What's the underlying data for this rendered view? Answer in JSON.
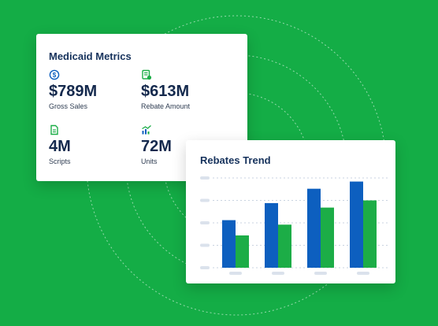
{
  "metrics_card": {
    "title": "Medicaid Metrics",
    "items": [
      {
        "value": "$789M",
        "label": "Gross Sales",
        "icon": "dollar-circle-icon"
      },
      {
        "value": "$613M",
        "label": "Rebate Amount",
        "icon": "rebate-document-icon"
      },
      {
        "value": "4M",
        "label": "Scripts",
        "icon": "script-document-icon"
      },
      {
        "value": "72M",
        "label": "Units",
        "icon": "trend-units-icon"
      }
    ]
  },
  "trend_card": {
    "title": "Rebates Trend"
  },
  "chart_data": {
    "type": "bar",
    "title": "Rebates Trend",
    "categories": [
      "",
      "",
      "",
      ""
    ],
    "series": [
      {
        "values": [
          0.53,
          0.72,
          0.88,
          0.96
        ],
        "color": "#0d5fbf"
      },
      {
        "values": [
          0.36,
          0.48,
          0.67,
          0.75
        ],
        "color": "#1cad47"
      }
    ],
    "ylim": [
      0,
      1
    ],
    "grid": true
  },
  "colors": {
    "background": "#14ad46",
    "title": "#16325c",
    "accent_blue": "#0d5fbf",
    "accent_green": "#1cad47"
  }
}
